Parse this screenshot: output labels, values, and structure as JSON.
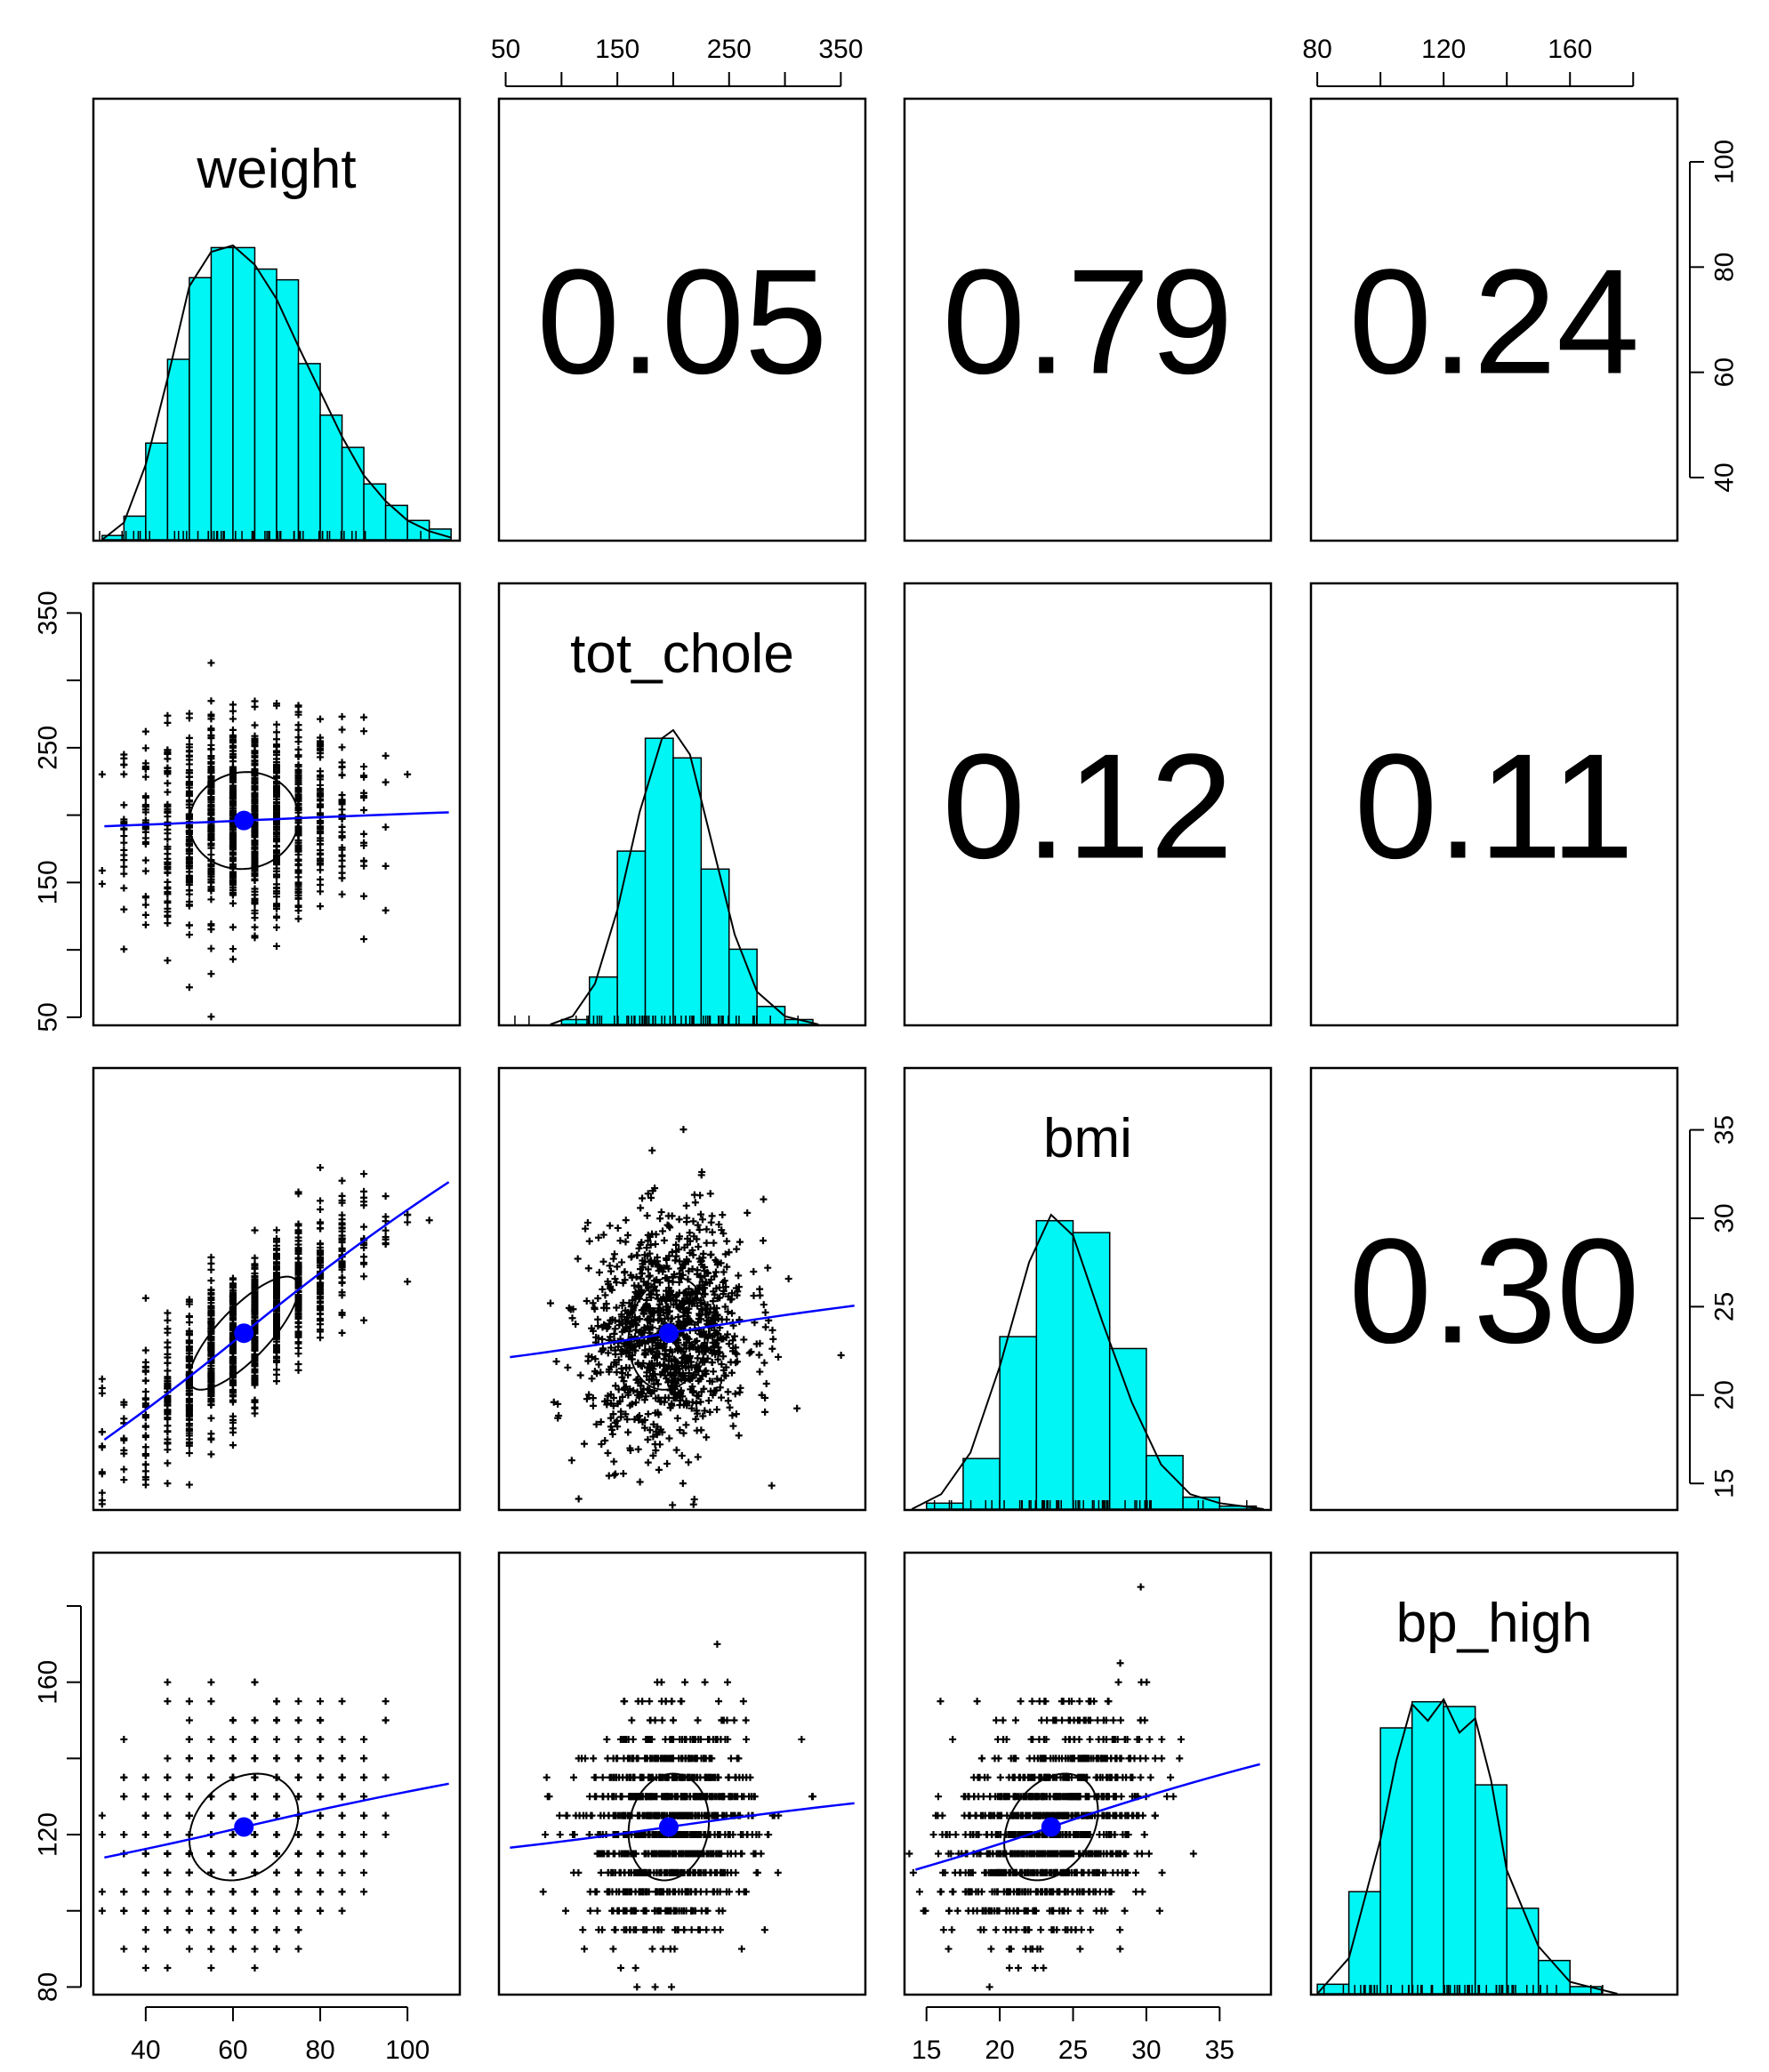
{
  "chart_data": {
    "type": "scatter",
    "title": "",
    "variables": [
      {
        "name": "weight",
        "range": [
          28,
          112
        ],
        "ticks": [
          40,
          60,
          80,
          100
        ]
      },
      {
        "name": "tot_chole",
        "range": [
          44,
          372
        ],
        "ticks": [
          50,
          100,
          150,
          200,
          250,
          300,
          350
        ],
        "tick_labels": [
          "50",
          "150",
          "250",
          "350"
        ]
      },
      {
        "name": "bmi",
        "range": [
          13.5,
          38.5
        ],
        "ticks": [
          15,
          20,
          25,
          30,
          35
        ]
      },
      {
        "name": "bp_high",
        "range": [
          78,
          194
        ],
        "ticks": [
          80,
          100,
          120,
          140,
          160,
          180
        ],
        "tick_labels": [
          "80",
          "120",
          "160"
        ]
      }
    ],
    "correlations": [
      {
        "row": "weight",
        "col": "tot_chole",
        "value": "0.05"
      },
      {
        "row": "weight",
        "col": "bmi",
        "value": "0.79"
      },
      {
        "row": "weight",
        "col": "bp_high",
        "value": "0.24"
      },
      {
        "row": "tot_chole",
        "col": "bmi",
        "value": "0.12"
      },
      {
        "row": "tot_chole",
        "col": "bp_high",
        "value": "0.11"
      },
      {
        "row": "bmi",
        "col": "bp_high",
        "value": "0.30"
      }
    ],
    "histograms": {
      "weight": {
        "bins": [
          [
            30,
            35,
            0.2
          ],
          [
            35,
            40,
            1.1
          ],
          [
            40,
            45,
            4.5
          ],
          [
            45,
            50,
            8.4
          ],
          [
            50,
            55,
            12.2
          ],
          [
            55,
            60,
            13.6
          ],
          [
            60,
            65,
            13.6
          ],
          [
            65,
            70,
            12.6
          ],
          [
            70,
            75,
            12.1
          ],
          [
            75,
            80,
            8.2
          ],
          [
            80,
            85,
            5.8
          ],
          [
            85,
            90,
            4.3
          ],
          [
            90,
            95,
            2.6
          ],
          [
            95,
            100,
            1.6
          ],
          [
            100,
            105,
            0.9
          ],
          [
            105,
            110,
            0.5
          ]
        ],
        "density": [
          [
            30,
            0.0
          ],
          [
            35,
            0.8
          ],
          [
            40,
            3.5
          ],
          [
            45,
            7.5
          ],
          [
            50,
            11.8
          ],
          [
            55,
            13.4
          ],
          [
            60,
            13.7
          ],
          [
            65,
            12.8
          ],
          [
            70,
            11.2
          ],
          [
            75,
            9.0
          ],
          [
            80,
            6.9
          ],
          [
            85,
            4.8
          ],
          [
            90,
            3.0
          ],
          [
            95,
            1.8
          ],
          [
            100,
            0.9
          ],
          [
            105,
            0.4
          ],
          [
            110,
            0.1
          ]
        ]
      },
      "tot_chole": {
        "bins": [
          [
            100,
            125,
            0.3
          ],
          [
            125,
            150,
            2.9
          ],
          [
            150,
            175,
            10.6
          ],
          [
            175,
            200,
            17.5
          ],
          [
            200,
            225,
            16.3
          ],
          [
            225,
            250,
            9.5
          ],
          [
            250,
            275,
            4.6
          ],
          [
            275,
            300,
            1.1
          ],
          [
            300,
            325,
            0.3
          ]
        ],
        "density": [
          [
            90,
            0.0
          ],
          [
            110,
            0.5
          ],
          [
            130,
            2.5
          ],
          [
            150,
            7.0
          ],
          [
            170,
            13.0
          ],
          [
            190,
            17.5
          ],
          [
            200,
            18.0
          ],
          [
            215,
            16.5
          ],
          [
            235,
            11.0
          ],
          [
            255,
            5.5
          ],
          [
            275,
            2.0
          ],
          [
            300,
            0.5
          ],
          [
            330,
            0.0
          ]
        ]
      },
      "bmi": {
        "bins": [
          [
            15,
            17.5,
            0.2
          ],
          [
            17.5,
            20,
            1.7
          ],
          [
            20,
            22.5,
            5.8
          ],
          [
            22.5,
            25,
            9.7
          ],
          [
            25,
            27.5,
            9.3
          ],
          [
            27.5,
            30,
            5.4
          ],
          [
            30,
            32.5,
            1.8
          ],
          [
            32.5,
            35,
            0.4
          ],
          [
            35,
            37.5,
            0.1
          ]
        ],
        "density": [
          [
            14,
            0.0
          ],
          [
            16,
            0.5
          ],
          [
            18,
            1.9
          ],
          [
            20,
            4.8
          ],
          [
            22,
            8.3
          ],
          [
            23.5,
            9.9
          ],
          [
            25,
            9.2
          ],
          [
            27,
            6.3
          ],
          [
            29,
            3.6
          ],
          [
            31,
            1.5
          ],
          [
            33,
            0.5
          ],
          [
            35,
            0.2
          ],
          [
            38,
            0.0
          ]
        ]
      },
      "bp_high": {
        "bins": [
          [
            80,
            90,
            0.4
          ],
          [
            90,
            100,
            4.3
          ],
          [
            100,
            110,
            11.2
          ],
          [
            110,
            120,
            12.3
          ],
          [
            120,
            130,
            12.1
          ],
          [
            130,
            140,
            8.8
          ],
          [
            140,
            150,
            3.6
          ],
          [
            150,
            160,
            1.4
          ],
          [
            160,
            170,
            0.3
          ]
        ],
        "density": [
          [
            80,
            0.0
          ],
          [
            90,
            1.5
          ],
          [
            100,
            6.5
          ],
          [
            105,
            9.8
          ],
          [
            110,
            12.2
          ],
          [
            115,
            11.5
          ],
          [
            120,
            12.4
          ],
          [
            125,
            11.0
          ],
          [
            130,
            11.6
          ],
          [
            135,
            9.0
          ],
          [
            140,
            5.2
          ],
          [
            150,
            2.0
          ],
          [
            160,
            0.5
          ],
          [
            175,
            0.0
          ]
        ]
      }
    },
    "bivariate_summary": {
      "means": {
        "weight": 62.5,
        "tot_chole": 196,
        "bmi": 23.5,
        "bp_high": 122
      },
      "sds": {
        "weight": 12.5,
        "tot_chole": 36,
        "bmi": 3.2,
        "bp_high": 14
      },
      "correlation_values": {
        "weight|tot_chole": 0.05,
        "weight|bmi": 0.79,
        "weight|bp_high": 0.24,
        "tot_chole|bmi": 0.12,
        "tot_chole|bp_high": 0.11,
        "bmi|bp_high": 0.3
      }
    },
    "colors": {
      "histogram_fill": "#00f5f5",
      "fit_line": "#0000ff",
      "points": "#000000",
      "frame": "#000000"
    }
  }
}
